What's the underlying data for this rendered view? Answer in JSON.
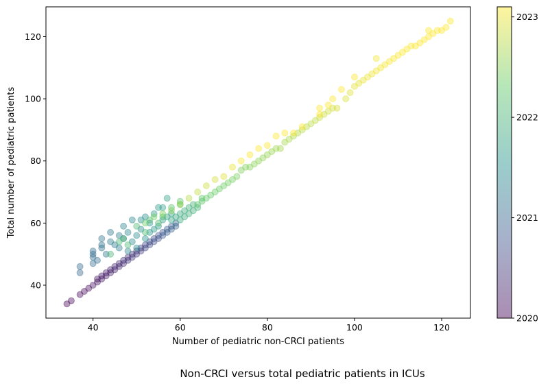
{
  "caption": "Non-CRCI versus total pediatric patients in ICUs",
  "chart_data": {
    "type": "scatter",
    "title": "",
    "xlabel": "Number of pediatric non-CRCI patients",
    "ylabel": "Total number of pediatric patients",
    "xlim": [
      29.2,
      126.6
    ],
    "ylim": [
      29.4,
      129.6
    ],
    "x_ticks": [
      40,
      60,
      80,
      100,
      120
    ],
    "y_ticks": [
      40,
      60,
      80,
      100,
      120
    ],
    "grid": false,
    "point_alpha": 0.4,
    "colormap": "viridis",
    "colorbar": {
      "label": "",
      "range": [
        2020,
        2023.1
      ],
      "ticks": [
        2020,
        2021,
        2022,
        2023
      ],
      "tick_labels": [
        "2020",
        "2021",
        "2022",
        "2023"
      ]
    },
    "series": [
      {
        "values": [
          [
            34,
            34,
            2020.0
          ],
          [
            35,
            35,
            2020.02
          ],
          [
            37,
            37,
            2020.05
          ],
          [
            38,
            38,
            2020.07
          ],
          [
            39,
            39,
            2020.1
          ],
          [
            40,
            40,
            2020.12
          ],
          [
            41,
            41,
            2020.15
          ],
          [
            41,
            42,
            2020.16
          ],
          [
            42,
            42,
            2020.18
          ],
          [
            42,
            43,
            2020.2
          ],
          [
            43,
            43,
            2020.22
          ],
          [
            43,
            44,
            2020.24
          ],
          [
            44,
            44,
            2020.26
          ],
          [
            44,
            45,
            2020.28
          ],
          [
            45,
            45,
            2020.3
          ],
          [
            45,
            46,
            2020.32
          ],
          [
            46,
            46,
            2020.34
          ],
          [
            46,
            47,
            2020.36
          ],
          [
            47,
            47,
            2020.38
          ],
          [
            47,
            48,
            2020.4
          ],
          [
            48,
            48,
            2020.42
          ],
          [
            48,
            49,
            2020.44
          ],
          [
            49,
            49,
            2020.46
          ],
          [
            49,
            50,
            2020.48
          ],
          [
            50,
            50,
            2020.5
          ],
          [
            50,
            51,
            2020.52
          ],
          [
            51,
            51,
            2020.55
          ],
          [
            51,
            52,
            2020.58
          ],
          [
            52,
            52,
            2020.6
          ],
          [
            52,
            53,
            2020.63
          ],
          [
            53,
            53,
            2020.66
          ],
          [
            53,
            54,
            2020.68
          ],
          [
            54,
            54,
            2020.7
          ],
          [
            54,
            55,
            2020.73
          ],
          [
            55,
            55,
            2020.76
          ],
          [
            55,
            56,
            2020.78
          ],
          [
            56,
            56,
            2020.8
          ],
          [
            56,
            57,
            2020.83
          ],
          [
            57,
            57,
            2020.86
          ],
          [
            57,
            58,
            2020.88
          ],
          [
            58,
            58,
            2020.9
          ],
          [
            58,
            59,
            2020.93
          ],
          [
            59,
            59,
            2020.95
          ],
          [
            59,
            60,
            2020.98
          ],
          [
            37,
            44,
            2021.0
          ],
          [
            37,
            46,
            2021.02
          ],
          [
            40,
            47,
            2021.05
          ],
          [
            40,
            49,
            2021.07
          ],
          [
            40,
            50,
            2021.08
          ],
          [
            40,
            51,
            2021.1
          ],
          [
            41,
            48,
            2021.12
          ],
          [
            42,
            52,
            2021.14
          ],
          [
            42,
            53,
            2021.16
          ],
          [
            42,
            55,
            2021.18
          ],
          [
            43,
            50,
            2021.2
          ],
          [
            44,
            57,
            2021.22
          ],
          [
            44,
            54,
            2021.24
          ],
          [
            45,
            53,
            2021.26
          ],
          [
            46,
            56,
            2021.28
          ],
          [
            46,
            52,
            2021.3
          ],
          [
            47,
            55,
            2021.32
          ],
          [
            47,
            59,
            2021.34
          ],
          [
            48,
            51,
            2021.36
          ],
          [
            48,
            57,
            2021.38
          ],
          [
            49,
            61,
            2021.4
          ],
          [
            49,
            54,
            2021.42
          ],
          [
            50,
            56,
            2021.44
          ],
          [
            50,
            52,
            2021.46
          ],
          [
            51,
            61,
            2021.48
          ],
          [
            51,
            58,
            2021.5
          ],
          [
            52,
            62,
            2021.52
          ],
          [
            52,
            55,
            2021.54
          ],
          [
            53,
            60,
            2021.56
          ],
          [
            53,
            57,
            2021.58
          ],
          [
            54,
            63,
            2021.6
          ],
          [
            54,
            58,
            2021.62
          ],
          [
            55,
            65,
            2021.64
          ],
          [
            55,
            59,
            2021.66
          ],
          [
            56,
            65,
            2021.68
          ],
          [
            56,
            61,
            2021.7
          ],
          [
            57,
            68,
            2021.72
          ],
          [
            57,
            62,
            2021.74
          ],
          [
            58,
            63,
            2021.76
          ],
          [
            58,
            61,
            2021.78
          ],
          [
            59,
            62,
            2021.8
          ],
          [
            60,
            61,
            2021.82
          ],
          [
            60,
            63,
            2021.84
          ],
          [
            61,
            62,
            2021.86
          ],
          [
            61,
            64,
            2021.88
          ],
          [
            62,
            63,
            2021.9
          ],
          [
            62,
            65,
            2021.92
          ],
          [
            63,
            64,
            2021.94
          ],
          [
            63,
            66,
            2021.96
          ],
          [
            64,
            65,
            2021.98
          ],
          [
            44,
            50,
            2022.0
          ],
          [
            46,
            54,
            2022.02
          ],
          [
            47,
            55,
            2022.04
          ],
          [
            48,
            53,
            2022.06
          ],
          [
            50,
            59,
            2022.08
          ],
          [
            52,
            57,
            2022.1
          ],
          [
            53,
            61,
            2022.12
          ],
          [
            55,
            60,
            2022.14
          ],
          [
            56,
            62,
            2022.16
          ],
          [
            58,
            65,
            2022.18
          ],
          [
            60,
            66,
            2022.2
          ],
          [
            60,
            67,
            2022.22
          ],
          [
            64,
            66,
            2022.24
          ],
          [
            65,
            67,
            2022.26
          ],
          [
            65,
            68,
            2022.28
          ],
          [
            66,
            68,
            2022.3
          ],
          [
            67,
            69,
            2022.32
          ],
          [
            68,
            70,
            2022.34
          ],
          [
            69,
            71,
            2022.36
          ],
          [
            70,
            72,
            2022.38
          ],
          [
            71,
            73,
            2022.4
          ],
          [
            72,
            74,
            2022.42
          ],
          [
            73,
            75,
            2022.44
          ],
          [
            74,
            77,
            2022.46
          ],
          [
            75,
            78,
            2022.48
          ],
          [
            76,
            78,
            2022.5
          ],
          [
            77,
            79,
            2022.52
          ],
          [
            78,
            80,
            2022.54
          ],
          [
            79,
            81,
            2022.56
          ],
          [
            80,
            82,
            2022.58
          ],
          [
            81,
            83,
            2022.6
          ],
          [
            82,
            84,
            2022.62
          ],
          [
            83,
            84,
            2022.64
          ],
          [
            84,
            86,
            2022.66
          ],
          [
            85,
            87,
            2022.68
          ],
          [
            86,
            88,
            2022.7
          ],
          [
            87,
            89,
            2022.72
          ],
          [
            88,
            90,
            2022.74
          ],
          [
            89,
            91,
            2022.76
          ],
          [
            90,
            92,
            2022.78
          ],
          [
            91,
            93,
            2022.8
          ],
          [
            92,
            94,
            2022.82
          ],
          [
            93,
            95,
            2022.84
          ],
          [
            94,
            96,
            2022.86
          ],
          [
            95,
            97,
            2022.88
          ],
          [
            96,
            97,
            2022.9
          ],
          [
            98,
            100,
            2022.92
          ],
          [
            99,
            102,
            2022.94
          ],
          [
            100,
            104,
            2022.96
          ],
          [
            101,
            105,
            2022.98
          ],
          [
            102,
            106,
            2023.0
          ],
          [
            103,
            107,
            2023.01
          ],
          [
            104,
            108,
            2023.02
          ],
          [
            105,
            109,
            2023.03
          ],
          [
            105,
            113,
            2023.04
          ],
          [
            106,
            110,
            2023.05
          ],
          [
            107,
            111,
            2023.06
          ],
          [
            108,
            112,
            2023.07
          ],
          [
            109,
            113,
            2023.08
          ],
          [
            110,
            114,
            2023.09
          ],
          [
            111,
            115,
            2023.1
          ],
          [
            112,
            116,
            2023.1
          ],
          [
            113,
            117,
            2023.1
          ],
          [
            114,
            117,
            2023.1
          ],
          [
            115,
            118,
            2023.1
          ],
          [
            116,
            119,
            2023.1
          ],
          [
            117,
            120,
            2023.1
          ],
          [
            117,
            122,
            2023.1
          ],
          [
            118,
            121,
            2023.1
          ],
          [
            119,
            122,
            2023.1
          ],
          [
            120,
            122,
            2023.1
          ],
          [
            121,
            123,
            2023.1
          ],
          [
            122,
            125,
            2023.1
          ],
          [
            92,
            97,
            2023.1
          ],
          [
            94,
            98,
            2023.1
          ],
          [
            95,
            100,
            2023.1
          ],
          [
            97,
            103,
            2023.1
          ],
          [
            100,
            107,
            2023.1
          ],
          [
            92,
            95,
            2023.1
          ],
          [
            88,
            91,
            2023.1
          ],
          [
            86,
            89,
            2023.1
          ],
          [
            84,
            89,
            2023.1
          ],
          [
            82,
            88,
            2023.1
          ],
          [
            80,
            85,
            2023.1
          ],
          [
            78,
            84,
            2023.1
          ],
          [
            76,
            82,
            2023.1
          ],
          [
            74,
            80,
            2023.05
          ],
          [
            72,
            78,
            2023.0
          ],
          [
            70,
            75,
            2022.95
          ],
          [
            68,
            74,
            2022.9
          ],
          [
            66,
            72,
            2022.85
          ],
          [
            64,
            70,
            2022.8
          ],
          [
            62,
            68,
            2022.75
          ],
          [
            60,
            66,
            2022.6
          ],
          [
            58,
            64,
            2022.5
          ],
          [
            56,
            63,
            2022.45
          ],
          [
            54,
            62,
            2022.4
          ],
          [
            52,
            60,
            2022.35
          ]
        ]
      }
    ]
  }
}
